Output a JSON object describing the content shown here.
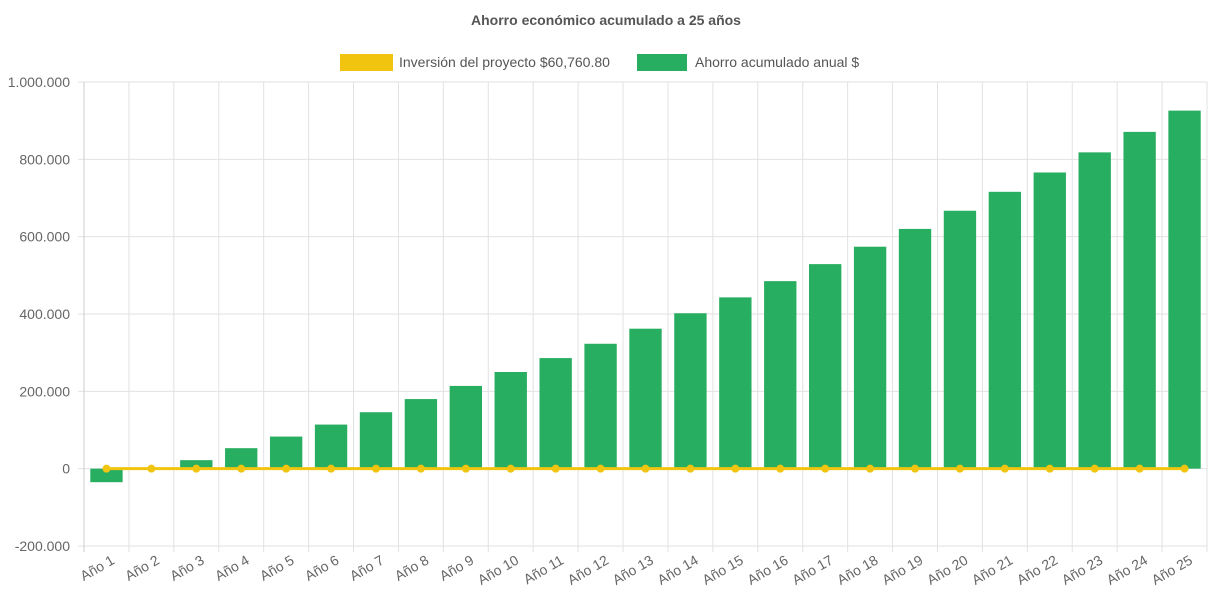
{
  "chart_data": {
    "type": "bar",
    "title": "Ahorro económico acumulado a 25 años",
    "legend_position": "top-center",
    "grid": true,
    "ylim": [
      -200000,
      1000000
    ],
    "yticks": [
      -200000,
      0,
      200000,
      400000,
      600000,
      800000,
      1000000
    ],
    "ytick_labels": [
      "-200.000",
      "0",
      "200.000",
      "400.000",
      "600.000",
      "800.000",
      "1.000.000"
    ],
    "categories": [
      "Año 1",
      "Año 2",
      "Año 3",
      "Año 4",
      "Año 5",
      "Año 6",
      "Año 7",
      "Año 8",
      "Año 9",
      "Año 10",
      "Año 11",
      "Año 12",
      "Año 13",
      "Año 14",
      "Año 15",
      "Año 16",
      "Año 17",
      "Año 18",
      "Año 19",
      "Año 20",
      "Año 21",
      "Año 22",
      "Año 23",
      "Año 24",
      "Año 25"
    ],
    "series": [
      {
        "name": "Inversión del proyecto $60,760.80",
        "type": "line",
        "color": "#f1c40f",
        "values": [
          0,
          0,
          0,
          0,
          0,
          0,
          0,
          0,
          0,
          0,
          0,
          0,
          0,
          0,
          0,
          0,
          0,
          0,
          0,
          0,
          0,
          0,
          0,
          0,
          0
        ]
      },
      {
        "name": "Ahorro acumulado anual $",
        "type": "bar",
        "color": "#27ae60",
        "values": [
          -35000,
          -2000,
          22000,
          53000,
          83000,
          114000,
          146000,
          180000,
          214000,
          250000,
          286000,
          323000,
          362000,
          402000,
          443000,
          485000,
          529000,
          574000,
          620000,
          667000,
          716000,
          766000,
          818000,
          871000,
          926000
        ]
      }
    ]
  }
}
